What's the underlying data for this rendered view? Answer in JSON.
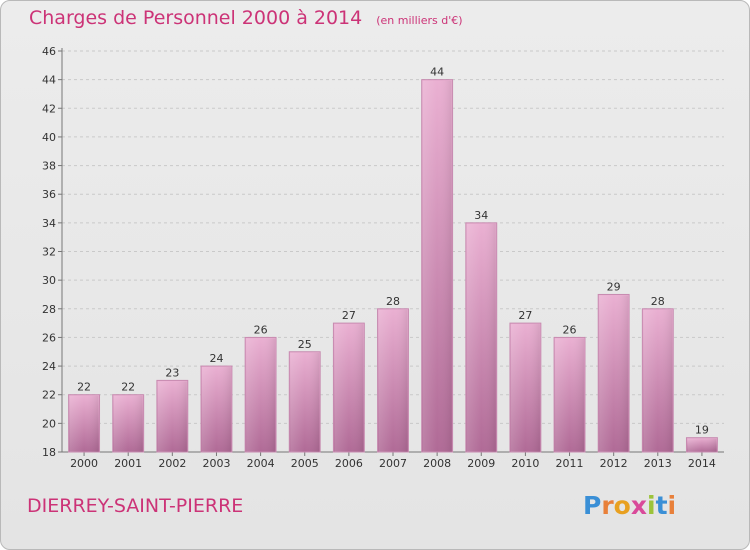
{
  "title": "Charges de Personnel 2000 à 2014",
  "subtitle": "(en milliers d'€)",
  "commune": "DIERREY-SAINT-PIERRE",
  "logo": "Proxiti",
  "colors": {
    "title": "#cc3377",
    "bar_light": "#e6a9cc",
    "bar_dark": "#b06a96",
    "grid": "#c9c9c9"
  },
  "chart_data": {
    "type": "bar",
    "categories": [
      "2000",
      "2001",
      "2002",
      "2003",
      "2004",
      "2005",
      "2006",
      "2007",
      "2008",
      "2009",
      "2010",
      "2011",
      "2012",
      "2013",
      "2014"
    ],
    "values": [
      22,
      22,
      23,
      24,
      26,
      25,
      27,
      28,
      44,
      34,
      27,
      26,
      29,
      28,
      19
    ],
    "ylim": [
      18,
      46
    ],
    "yticks": [
      18,
      20,
      22,
      24,
      26,
      28,
      30,
      32,
      34,
      36,
      38,
      40,
      42,
      44,
      46
    ],
    "grid": true
  }
}
